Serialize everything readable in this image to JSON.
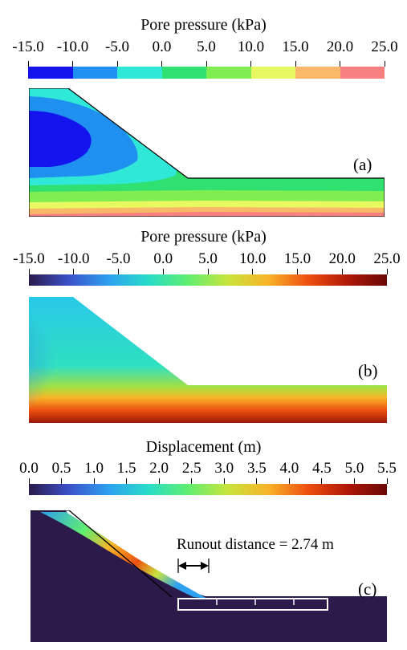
{
  "panel_a": {
    "title": "Pore pressure (kPa)",
    "ticks": [
      "-15.0",
      "-10.0",
      "-5.0",
      "0.0",
      "5.0",
      "10.0",
      "15.0",
      "20.0",
      "25.0"
    ],
    "band_colors": [
      "#1414ee",
      "#2090f0",
      "#30e8d8",
      "#30e070",
      "#80ee50",
      "#e8f860",
      "#f8b868",
      "#f88080"
    ],
    "label": "(a)"
  },
  "panel_b": {
    "title": "Pore pressure (kPa)",
    "ticks": [
      "-15.0",
      "-10.0",
      "-5.0",
      "0.0",
      "5.0",
      "10.0",
      "15.0",
      "20.0",
      "25.0"
    ],
    "label": "(b)"
  },
  "panel_c": {
    "title": "Displacement (m)",
    "ticks": [
      "0.0",
      "0.5",
      "1.0",
      "1.5",
      "2.0",
      "2.5",
      "3.0",
      "3.5",
      "4.0",
      "4.5",
      "5.0",
      "5.5"
    ],
    "label": "(c)",
    "annotation": "Runout distance = 2.74 m"
  },
  "colormap": [
    "#2b1a4a",
    "#3c50c8",
    "#2ea0f0",
    "#28dcc8",
    "#60ee70",
    "#c8e43c",
    "#f8b428",
    "#ee5010",
    "#b01808",
    "#6a0808"
  ]
}
